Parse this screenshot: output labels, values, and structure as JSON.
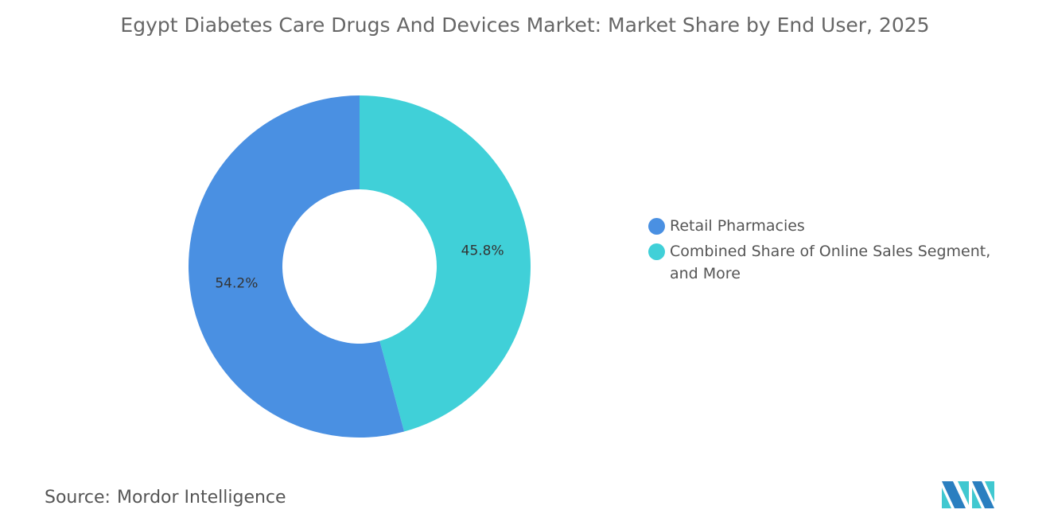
{
  "chart_data": {
    "type": "pie",
    "title": "Egypt Diabetes Care Drugs And Devices Market: Market Share by End User, 2025",
    "donut": true,
    "categories": [
      "Retail Pharmacies",
      "Combined Share of Online Sales Segment, and More"
    ],
    "values": [
      54.2,
      45.8
    ],
    "data_labels": [
      "54.2%",
      "45.8%"
    ],
    "colors": [
      "#4a90e2",
      "#40d0d8"
    ],
    "legend_position": "right"
  },
  "source": {
    "label": "Source:",
    "value": "Mordor Intelligence"
  },
  "logo_text": "Mordor Intelligence"
}
